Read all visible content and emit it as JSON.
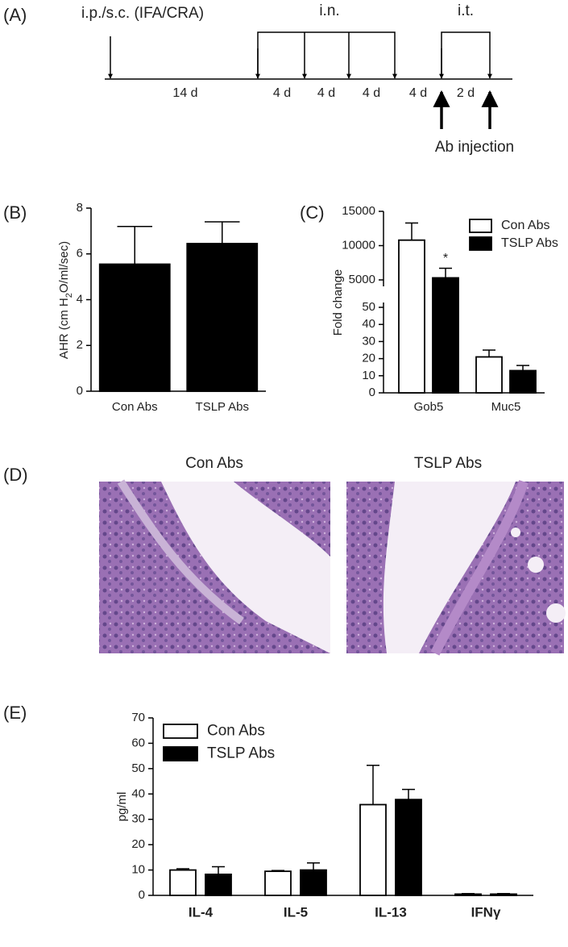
{
  "panel_labels": [
    "(A)",
    "(B)",
    "(C)",
    "(D)",
    "(E)"
  ],
  "timeline": {
    "primary": "i.p./s.c. (IFA/CRA)",
    "intranasal": "i.n.",
    "intratracheal": "i.t.",
    "intervals": [
      "14 d",
      "4 d",
      "4 d",
      "4 d",
      "4 d",
      "2 d"
    ],
    "annotation": "Ab injection"
  },
  "histology": {
    "titles": [
      "Con Abs",
      "TSLP Abs"
    ]
  },
  "chart_data": [
    {
      "type": "bar",
      "ylabel_parts": [
        "AHR (cm H",
        "2",
        "O/ml/sec)"
      ],
      "categories": [
        "Con Abs",
        "TSLP Abs"
      ],
      "values": [
        5.55,
        6.45
      ],
      "errors": [
        1.65,
        0.95
      ],
      "color": "#000000",
      "ylim": [
        0,
        8
      ],
      "yticks": [
        0,
        2,
        4,
        6,
        8
      ]
    },
    {
      "type": "bar",
      "ylabel": "Fold change",
      "categories": [
        "Gob5",
        "Muc5"
      ],
      "series": [
        {
          "name": "Con Abs",
          "color": "#ffffff",
          "values": [
            10800,
            21
          ],
          "errors": [
            2500,
            4
          ]
        },
        {
          "name": "TSLP Abs",
          "color": "#000000",
          "values": [
            5300,
            13
          ],
          "errors": [
            1400,
            3
          ]
        }
      ],
      "ylim": [
        0,
        15000
      ],
      "axis_break": [
        50,
        5000
      ],
      "yticks": [
        0,
        10,
        20,
        30,
        40,
        50,
        5000,
        10000,
        15000
      ],
      "annotation": "*"
    },
    {
      "type": "bar",
      "ylabel": "pg/ml",
      "categories": [
        "IL-4",
        "IL-5",
        "IL-13",
        "IFNγ"
      ],
      "series": [
        {
          "name": "Con Abs",
          "color": "#ffffff",
          "values": [
            10,
            9.5,
            35.8,
            0.5
          ],
          "errors": [
            0.5,
            0.3,
            15.5,
            0.2
          ]
        },
        {
          "name": "TSLP Abs",
          "color": "#000000",
          "values": [
            8.3,
            10,
            37.8,
            0.5
          ],
          "errors": [
            3,
            2.8,
            4,
            0.2
          ]
        }
      ],
      "ylim": [
        0,
        70
      ],
      "yticks": [
        0,
        10,
        20,
        30,
        40,
        50,
        60,
        70
      ]
    }
  ]
}
